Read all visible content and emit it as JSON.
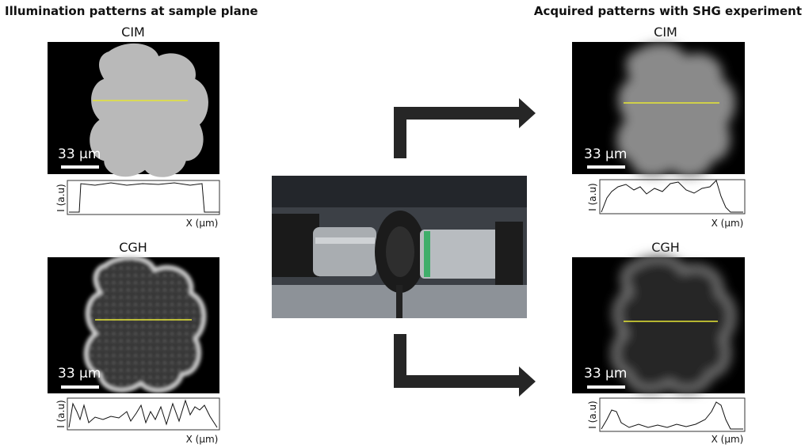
{
  "left": {
    "title": "Illumination patterns at sample plane",
    "panels": [
      {
        "label": "CIM",
        "scale_bar": "33 µm",
        "y_axis": "I (a.u)",
        "x_axis": "X (µm)"
      },
      {
        "label": "CGH",
        "scale_bar": "33 µm",
        "y_axis": "I (a.u)",
        "x_axis": "X (µm)"
      }
    ]
  },
  "right": {
    "title": "Acquired patterns with SHG experiment",
    "panels": [
      {
        "label": "CIM",
        "scale_bar": "33 µm",
        "y_axis": "I (a.u)",
        "x_axis": "X (µm)"
      },
      {
        "label": "CGH",
        "scale_bar": "33 µm",
        "y_axis": "I (a.u)",
        "x_axis": "X (µm)"
      }
    ]
  }
}
